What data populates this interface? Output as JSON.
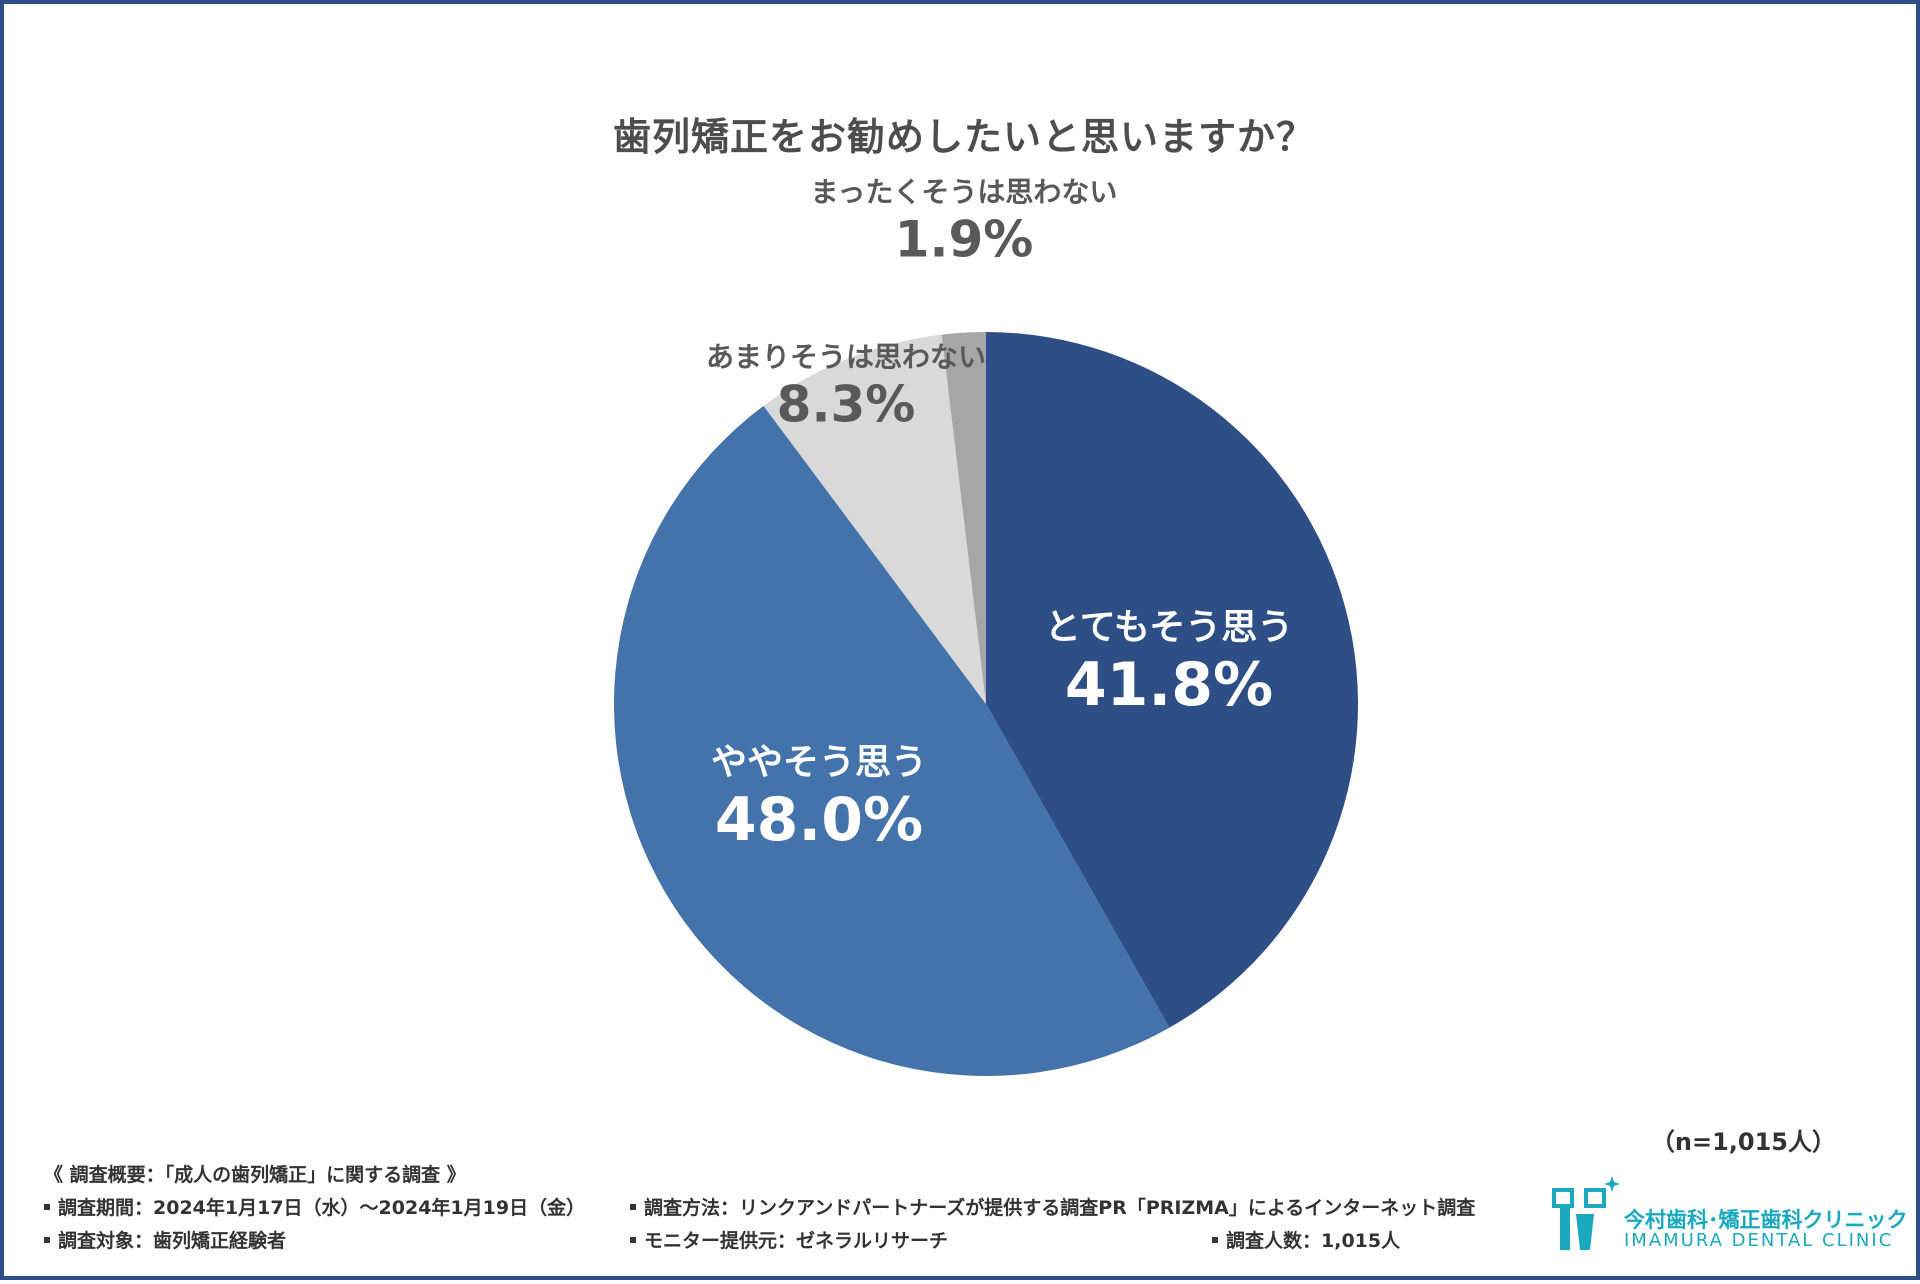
{
  "title": "歯列矯正をお勧めしたいと思いますか？",
  "chart_data": {
    "type": "pie",
    "title": "歯列矯正をお勧めしたいと思いますか？",
    "categories": [
      "とてもそう思う",
      "ややそう思う",
      "あまりそうは思わない",
      "まったくそうは思わない"
    ],
    "values": [
      41.8,
      48.0,
      8.3,
      1.9
    ],
    "value_labels": [
      "41.8%",
      "48.0%",
      "8.3%",
      "1.9%"
    ],
    "colors": [
      "#2e4e86",
      "#4472aa",
      "#d9d9d9",
      "#a6a6a6"
    ],
    "start_angle": "12 o'clock",
    "direction": "clockwise"
  },
  "n_note": "（n=1,015人）",
  "footer": {
    "heading": "《 調査概要：「成人の歯列矯正」に関する調査 》",
    "period": "調査期間：2024年1月17日（水）～2024年1月19日（金）",
    "method": "調査方法：リンクアンドパートナーズが提供する調査PR「PRIZMA」によるインターネット調査",
    "target": "調査対象：歯列矯正経験者",
    "monitor": "モニター提供元：ゼネラルリサーチ",
    "count": "調査人数：1,015人"
  },
  "logo": {
    "jp": "今村歯科･矯正歯科クリニック",
    "en": "IMAMURA DENTAL CLINIC"
  }
}
